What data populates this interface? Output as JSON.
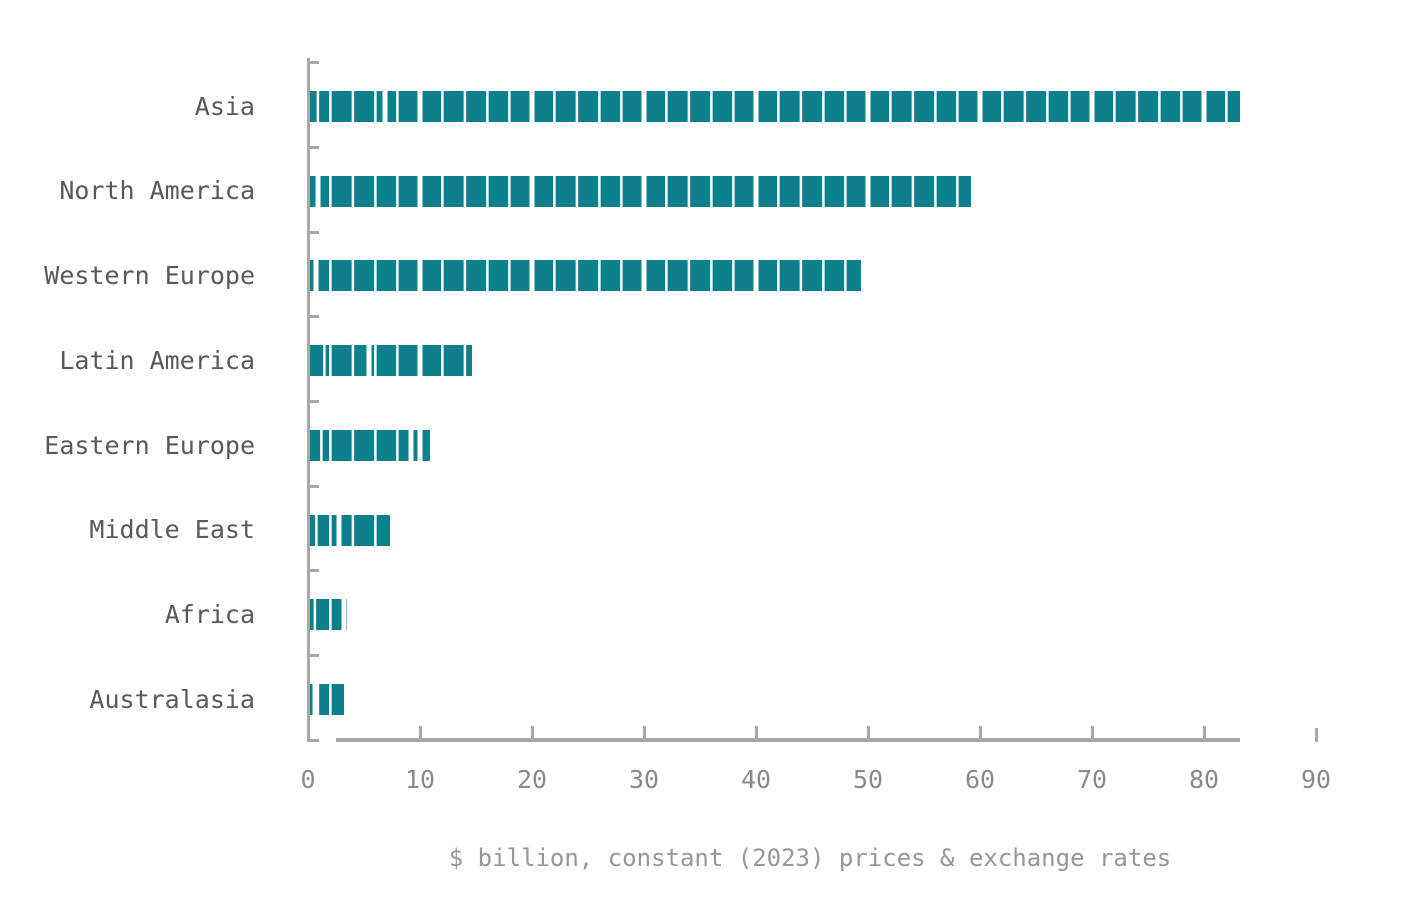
{
  "chart_data": {
    "type": "bar",
    "orientation": "horizontal",
    "title": "",
    "xlabel": "$ billion, constant (2023) prices & exchange rates",
    "ylabel": "",
    "categories": [
      "Asia",
      "North America",
      "Western Europe",
      "Latin America",
      "Eastern Europe",
      "Middle East",
      "Africa",
      "Australasia"
    ],
    "values": [
      83.2,
      59.2,
      49.4,
      14.6,
      10.9,
      7.3,
      3.5,
      3.2
    ],
    "xlim": [
      0,
      90
    ],
    "xticks": [
      0,
      10,
      20,
      30,
      40,
      50,
      60,
      70,
      80,
      90
    ],
    "grid": false,
    "legend": null,
    "bar_pattern": "thin white separators every 2 units, thick white separators every 10 units",
    "colors": {
      "bar": "#0e7f8c",
      "axis": "#a8a8a8",
      "category_label": "#595959",
      "tick_label": "#8a8a8a",
      "caption": "#979797",
      "background": "#ffffff"
    }
  }
}
